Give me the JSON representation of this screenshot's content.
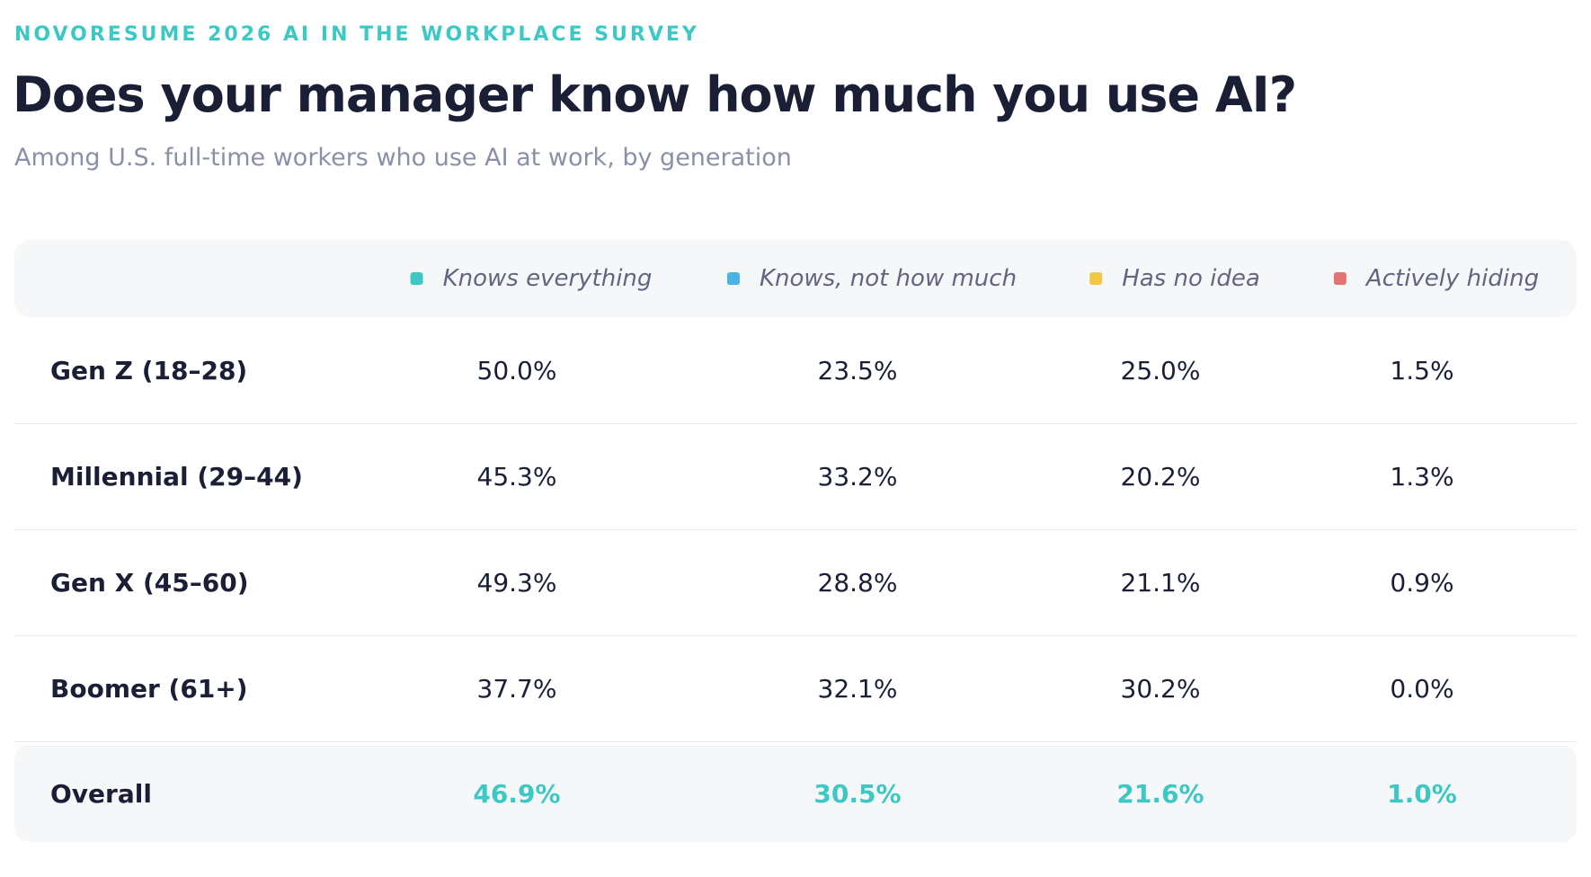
{
  "header": {
    "eyebrow": "NOVORESUME 2026 AI IN THE WORKPLACE SURVEY",
    "title": "Does your manager know how much you use AI?",
    "subtitle": "Among U.S. full-time workers who use AI at work, by generation"
  },
  "table": {
    "columns": [
      {
        "name": "Knows everything",
        "color": "#3cc8c4"
      },
      {
        "name": "Knows, not how much",
        "color": "#4ab3e6"
      },
      {
        "name": "Has no idea",
        "color": "#f2c744"
      },
      {
        "name": "Actively hiding",
        "color": "#e57373"
      }
    ],
    "rows": [
      {
        "label": "Gen Z (18–28)",
        "values": [
          "50.0%",
          "23.5%",
          "25.0%",
          "1.5%"
        ]
      },
      {
        "label": "Millennial (29–44)",
        "values": [
          "45.3%",
          "33.2%",
          "20.2%",
          "1.3%"
        ]
      },
      {
        "label": "Gen X (45–60)",
        "values": [
          "49.3%",
          "28.8%",
          "21.1%",
          "0.9%"
        ]
      },
      {
        "label": "Boomer (61+)",
        "values": [
          "37.7%",
          "32.1%",
          "30.2%",
          "0.0%"
        ]
      }
    ],
    "total": {
      "label": "Overall",
      "values": [
        "46.9%",
        "30.5%",
        "21.6%",
        "1.0%"
      ]
    }
  }
}
